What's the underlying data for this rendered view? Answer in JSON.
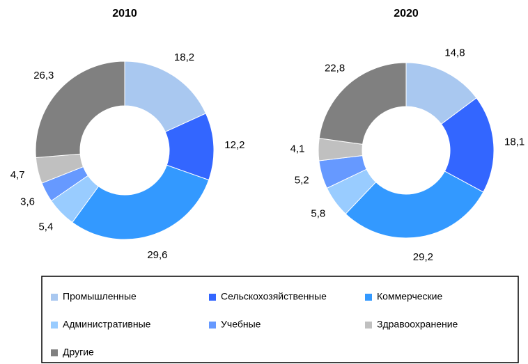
{
  "chart_data": [
    {
      "type": "pie",
      "title": "2010",
      "categories": [
        "Промышленные",
        "Сельскохозяйственные",
        "Коммерческие",
        "Административные",
        "Учебные",
        "Здравоохранение",
        "Другие"
      ],
      "values": [
        18.2,
        12.2,
        29.6,
        5.4,
        3.6,
        4.7,
        26.3
      ],
      "value_labels": [
        "18,2",
        "12,2",
        "29,6",
        "5,4",
        "3,6",
        "4,7",
        "26,3"
      ],
      "colors": [
        "#a9c8f0",
        "#3366ff",
        "#3399ff",
        "#99ccff",
        "#6699ff",
        "#c0c0c0",
        "#808080"
      ]
    },
    {
      "type": "pie",
      "title": "2020",
      "categories": [
        "Промышленные",
        "Сельскохозяйственные",
        "Коммерческие",
        "Административные",
        "Учебные",
        "Здравоохранение",
        "Другие"
      ],
      "values": [
        14.8,
        18.1,
        29.2,
        5.8,
        5.2,
        4.1,
        22.8
      ],
      "value_labels": [
        "14,8",
        "18,1",
        "29,2",
        "5,8",
        "5,2",
        "4,1",
        "22,8"
      ],
      "colors": [
        "#a9c8f0",
        "#3366ff",
        "#3399ff",
        "#99ccff",
        "#6699ff",
        "#c0c0c0",
        "#808080"
      ]
    }
  ]
}
